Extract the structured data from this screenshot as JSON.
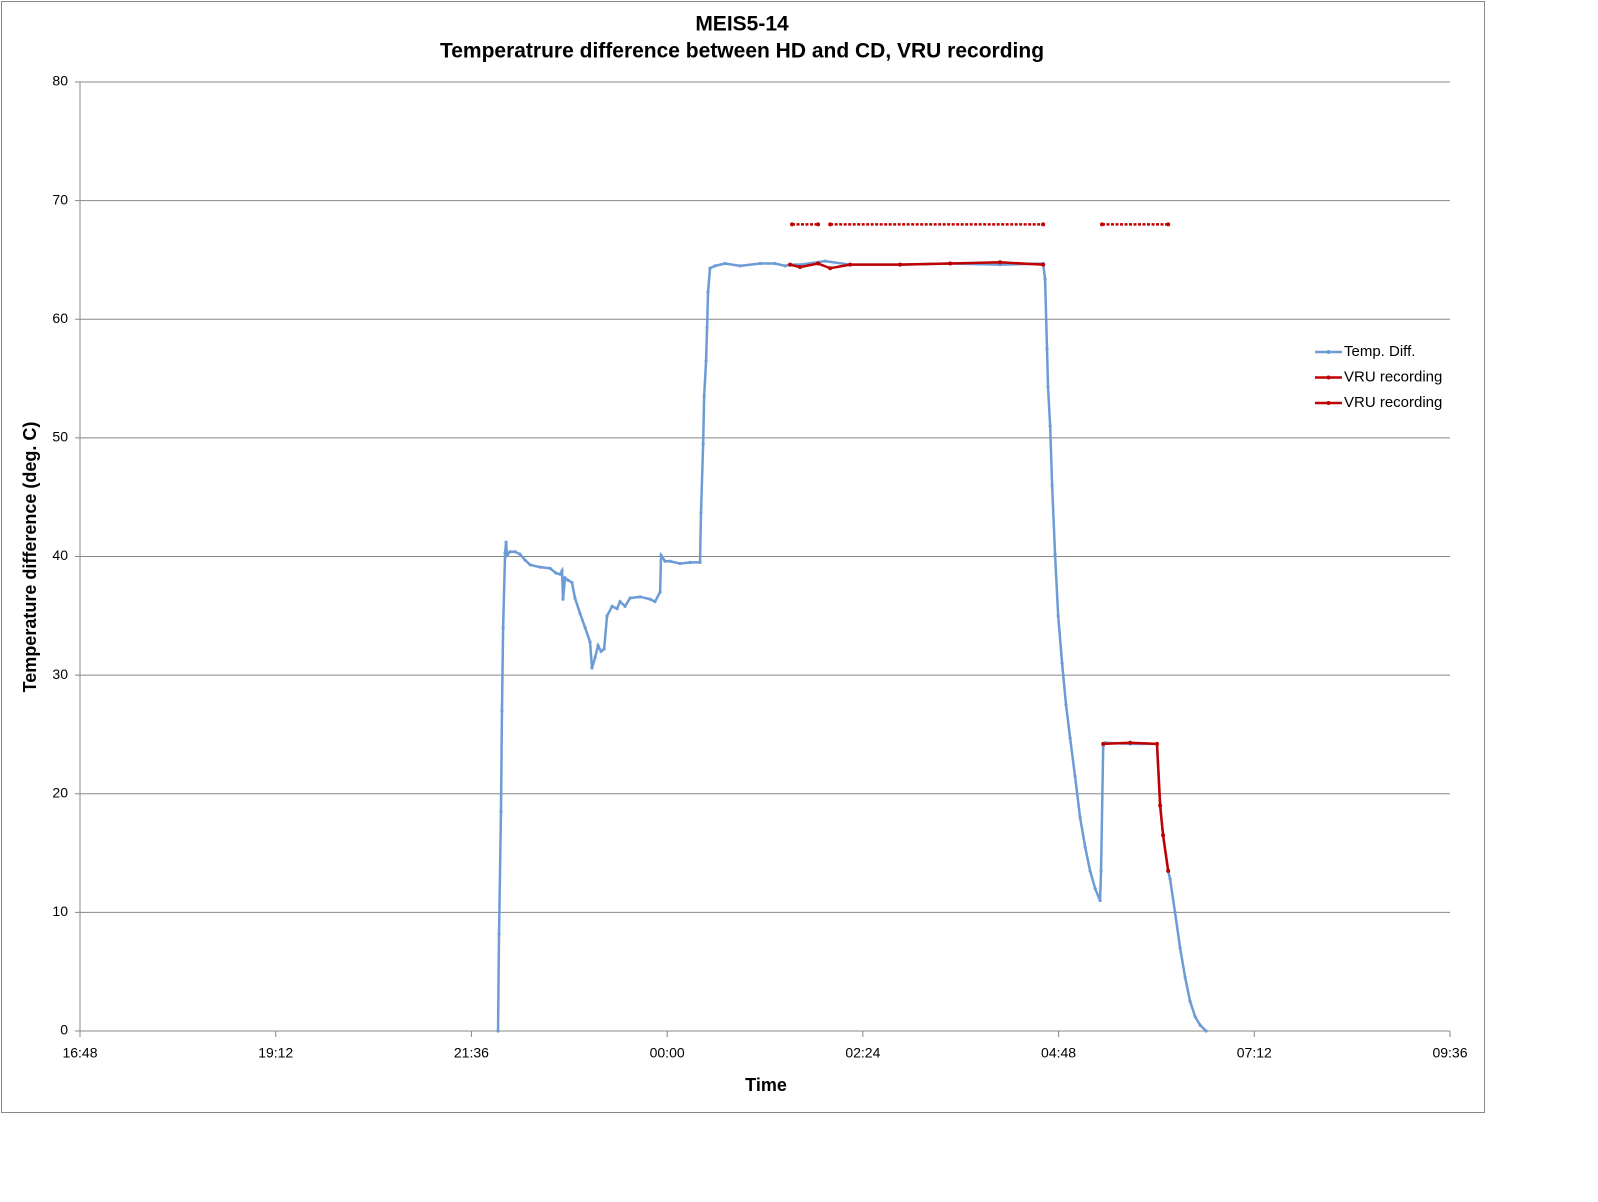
{
  "chart_data": {
    "type": "line",
    "title": [
      "MEIS5-14",
      "Temperatrure difference between HD and CD, VRU recording"
    ],
    "x_label": "Time",
    "y_label": "Temperature difference (deg. C)",
    "xlim": [
      0.7,
      1.4
    ],
    "xticks": [
      {
        "value": 0.7,
        "label": "16:48"
      },
      {
        "value": 0.8,
        "label": "19:12"
      },
      {
        "value": 0.9,
        "label": "21:36"
      },
      {
        "value": 1.0,
        "label": "00:00"
      },
      {
        "value": 1.1,
        "label": "02:24"
      },
      {
        "value": 1.2,
        "label": "04:48"
      },
      {
        "value": 1.3,
        "label": "07:12"
      },
      {
        "value": 1.4,
        "label": "09:36"
      }
    ],
    "ylim": [
      0,
      80
    ],
    "yticks": [
      0,
      10,
      20,
      30,
      40,
      50,
      60,
      70,
      80
    ],
    "grid": true,
    "legend": "right",
    "series": [
      {
        "name": "Temp. Diff.",
        "color": "#6d9bd6",
        "x": [
          0.9136,
          0.9141,
          0.9151,
          0.9156,
          0.9162,
          0.9172,
          0.9177,
          0.9182,
          0.9197,
          0.9223,
          0.9248,
          0.9274,
          0.93,
          0.9351,
          0.9402,
          0.9432,
          0.9453,
          0.9463,
          0.9468,
          0.9478,
          0.9494,
          0.9514,
          0.9529,
          0.9555,
          0.9581,
          0.9606,
          0.9616,
          0.9632,
          0.9647,
          0.9662,
          0.9678,
          0.9693,
          0.9719,
          0.9744,
          0.9759,
          0.9785,
          0.9811,
          0.9862,
          0.9913,
          0.9938,
          0.9964,
          0.9969,
          0.9989,
          1.0015,
          1.0066,
          1.0117,
          1.0168,
          1.0173,
          1.0184,
          1.0189,
          1.0199,
          1.0204,
          1.0209,
          1.0219,
          1.0245,
          1.0296,
          1.0373,
          1.0475,
          1.0551,
          1.0603,
          1.0628,
          1.0679,
          1.0807,
          1.0935,
          1.119,
          1.1446,
          1.1701,
          1.1921,
          1.1931,
          1.1941,
          1.1946,
          1.1957,
          1.1967,
          1.1982,
          1.1998,
          1.2018,
          1.2038,
          1.2059,
          1.2084,
          1.211,
          1.2136,
          1.2161,
          1.2187,
          1.2212,
          1.2217,
          1.2228,
          1.2238,
          1.2366,
          1.2503,
          1.2519,
          1.2534,
          1.256,
          1.257,
          1.2595,
          1.2621,
          1.2647,
          1.2672,
          1.2698,
          1.2723,
          1.2754
        ],
        "values": [
          0,
          8.2,
          18.5,
          27,
          34,
          40.3,
          41.2,
          40.1,
          40.4,
          40.4,
          40.2,
          39.7,
          39.3,
          39.1,
          39,
          38.6,
          38.5,
          38.8,
          36.4,
          38.2,
          38,
          37.8,
          36.5,
          35.2,
          34,
          32.8,
          30.6,
          31.5,
          32.5,
          32,
          32.2,
          35,
          35.8,
          35.6,
          36.2,
          35.8,
          36.5,
          36.6,
          36.4,
          36.2,
          37,
          40.1,
          39.6,
          39.6,
          39.4,
          39.5,
          39.5,
          43.7,
          49.5,
          53.5,
          56.5,
          59.3,
          62.3,
          64.3,
          64.5,
          64.7,
          64.5,
          64.7,
          64.7,
          64.5,
          64.6,
          64.6,
          64.9,
          64.6,
          64.6,
          64.7,
          64.6,
          64.7,
          63.4,
          57.5,
          54.3,
          51,
          46,
          40.2,
          35,
          31,
          27.5,
          24.7,
          21.5,
          18,
          15.5,
          13.5,
          12,
          11,
          13.5,
          24,
          24.3,
          24.2,
          24.2,
          19,
          16.5,
          13.5,
          12.8,
          10,
          7,
          4.5,
          2.5,
          1.2,
          0.5,
          0
        ]
      },
      {
        "name": "VRU recording",
        "color": "#c00000",
        "x": [
          1.0638,
          1.0771,
          1.08,
          1.0833,
          1.1921,
          1.2,
          1.2222,
          1.256
        ],
        "values": [
          68,
          68,
          null,
          68,
          68,
          null,
          68,
          68
        ]
      },
      {
        "name": "VRU recording",
        "color": "#c00000",
        "x": [
          1.0628,
          1.0679,
          1.0771,
          1.0833,
          1.0935,
          1.119,
          1.1446,
          1.1701,
          1.1921,
          1.2,
          1.2228,
          1.2366,
          1.2503,
          1.2519,
          1.2534,
          1.256
        ],
        "values": [
          64.6,
          64.4,
          64.7,
          64.3,
          64.6,
          64.6,
          64.7,
          64.8,
          64.6,
          null,
          24.2,
          24.3,
          24.2,
          19,
          16.5,
          13.5
        ]
      }
    ]
  }
}
